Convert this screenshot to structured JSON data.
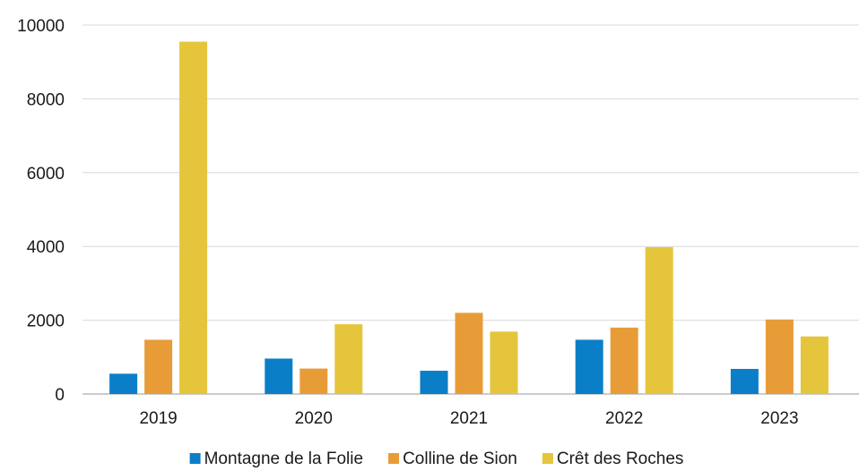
{
  "chart_data": {
    "type": "bar",
    "categories": [
      "2019",
      "2020",
      "2021",
      "2022",
      "2023"
    ],
    "series": [
      {
        "name": "Montagne de la Folie",
        "color": "#0a7fc8",
        "values": [
          550,
          960,
          630,
          1470,
          680
        ]
      },
      {
        "name": "Colline de Sion",
        "color": "#e89c38",
        "values": [
          1470,
          690,
          2200,
          1800,
          2020
        ]
      },
      {
        "name": "Crêt des Roches",
        "color": "#e5c53c",
        "values": [
          9550,
          1890,
          1690,
          3980,
          1560
        ]
      }
    ],
    "ylim": [
      0,
      10000
    ],
    "yticks": [
      0,
      2000,
      4000,
      6000,
      8000,
      10000
    ],
    "grid": true,
    "legend_position": "bottom-center"
  }
}
